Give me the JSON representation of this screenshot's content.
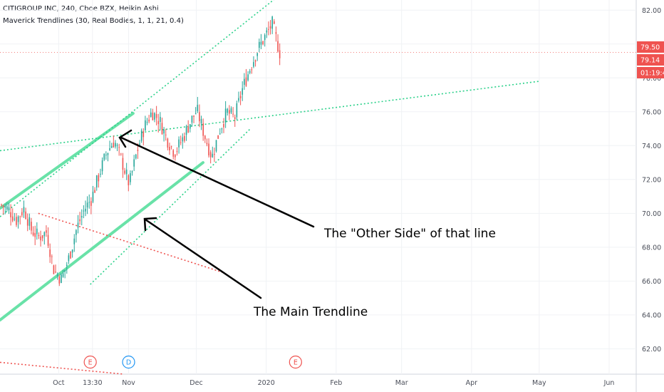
{
  "header": {
    "symbol_line": "CITIGROUP INC, 240, Cboe BZX, Heikin Ashi",
    "indicator_line": "Maverick Trendlines (30, Real Bodies, 1, 1, 21, 0.4)"
  },
  "annotations": {
    "other_side": "The \"Other Side\" of that line",
    "main_trendline": "The Main Trendline"
  },
  "price_tags": [
    {
      "text": "79.50",
      "color": "#ef5350"
    },
    {
      "text": "79.14",
      "color": "#ef5350"
    },
    {
      "text": "01:19:4",
      "color": "#ef5350"
    }
  ],
  "event_markers": [
    {
      "letter": "E",
      "color": "#ef5350",
      "date": "2019-10-15"
    },
    {
      "letter": "D",
      "color": "#2196f3",
      "date": "2019-11-01"
    },
    {
      "letter": "E",
      "color": "#ef5350",
      "date": "2020-01-14"
    }
  ],
  "colors": {
    "up": "#26a69a",
    "down": "#ef5350",
    "trend": "#69e2a8",
    "dotted_green": "#2bd18a",
    "dotted_red": "#ef5350"
  },
  "chart_data": {
    "type": "candlestick",
    "title": "CITIGROUP INC, 240, Cboe BZX, Heikin Ashi",
    "ylim": [
      60.5,
      82.6
    ],
    "y_ticks": [
      "82.00",
      "80.00",
      "78.00",
      "76.00",
      "74.00",
      "72.00",
      "70.00",
      "68.00",
      "66.00",
      "64.00",
      "62.00"
    ],
    "x_ticks": [
      "Oct",
      "13:30",
      "Nov",
      "Dec",
      "2020",
      "Feb",
      "Mar",
      "Apr",
      "May",
      "Jun"
    ],
    "grid": true,
    "last_price": 79.5,
    "candle_path": [
      70.5,
      70.2,
      69.6,
      70.3,
      69.0,
      68.6,
      68.9,
      66.6,
      66.1,
      67.4,
      69.1,
      70.2,
      70.9,
      72.3,
      73.6,
      74.3,
      73.1,
      71.7,
      73.6,
      75.1,
      76.0,
      75.5,
      74.4,
      73.6,
      74.3,
      75.3,
      76.1,
      74.6,
      73.3,
      74.9,
      76.0,
      75.6,
      77.3,
      78.5,
      79.6,
      80.4,
      81.2,
      79.5
    ],
    "trendlines": [
      {
        "name": "main_lower",
        "style": "solid",
        "from": {
          "x": "2019-09-05",
          "y": 63.7
        },
        "to": {
          "x": "2019-12-04",
          "y": 73.0
        }
      },
      {
        "name": "main_upper",
        "style": "solid",
        "from": {
          "x": "2019-09-05",
          "y": 70.3
        },
        "to": {
          "x": "2019-11-03",
          "y": 75.9
        }
      },
      {
        "name": "upper_channel",
        "style": "dotted",
        "from": {
          "x": "2019-09-05",
          "y": 69.8
        },
        "to": {
          "x": "2020-01-08",
          "y": 83.0
        }
      },
      {
        "name": "lower_channel",
        "style": "dotted",
        "from": {
          "x": "2019-10-15",
          "y": 65.8
        },
        "to": {
          "x": "2019-12-25",
          "y": 75.0
        }
      },
      {
        "name": "long_trend",
        "style": "dotted",
        "from": {
          "x": "2019-09-05",
          "y": 73.7
        },
        "to": {
          "x": "2020-05-01",
          "y": 77.8
        }
      },
      {
        "name": "red_mid",
        "style": "dotted",
        "from": {
          "x": "2019-09-22",
          "y": 70.0
        },
        "to": {
          "x": "2019-12-13",
          "y": 66.5
        }
      },
      {
        "name": "red_low",
        "style": "dotted",
        "from": {
          "x": "2019-09-05",
          "y": 61.2
        },
        "to": {
          "x": "2019-10-30",
          "y": 60.5
        }
      }
    ]
  }
}
